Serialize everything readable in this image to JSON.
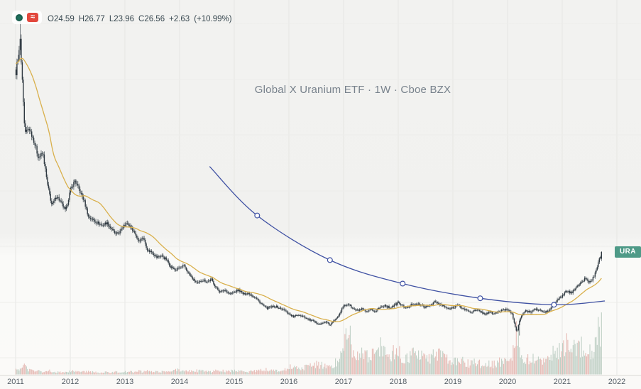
{
  "watermark": {
    "text": "Global X Uranium ETF · 1W · Cboe BZX"
  },
  "legend": {
    "ohlc_parts": [
      "O24.59",
      "H26.77",
      "L23.96",
      "C26.56",
      "+2.63",
      "(+10.99%)"
    ]
  },
  "badges": {
    "symbol_label": "URA"
  },
  "icons": {
    "wave_badge_glyph": "≈"
  },
  "time_axis": {
    "years": [
      "2011",
      "2012",
      "2013",
      "2014",
      "2015",
      "2016",
      "2017",
      "2018",
      "2019",
      "2020",
      "2021",
      "2022"
    ]
  },
  "colors": {
    "candle": "#2e3840",
    "ma": "#d9b04c",
    "curve": "#3f51a3",
    "vol_up": "#b4c8bc",
    "vol_down": "#e2afa9",
    "grid_v": "#e6e6e3",
    "grid_h": "#ededea",
    "accent_badge": "#4e9a87",
    "icon_red": "#e2483d",
    "icon_dot": "#1e6f5c",
    "legend_text": "#37474f",
    "watermark_text": "#78828c"
  },
  "chart_data": {
    "type": "candlestick",
    "title": "Global X Uranium ETF · 1W · Cboe BZX",
    "ticker": "URA",
    "interval": "1W",
    "exchange": "Cboe BZX",
    "last_bar": {
      "open": 24.59,
      "high": 26.77,
      "low": 23.96,
      "close": 26.56,
      "change": 2.63,
      "change_pct": 10.99
    },
    "x_domain": [
      2011.0,
      2022.15
    ],
    "ylim": [
      0,
      150
    ],
    "grid": true,
    "legend_position": "top-left",
    "events": {
      "peak_t": 2011.083,
      "peak_high": 139,
      "low_t": 2020.21,
      "low_low": 7.55
    },
    "pre_t": [
      2010.333,
      2010.417,
      2010.5,
      2010.583,
      2010.667,
      2010.75,
      2010.833,
      2010.917
    ],
    "pre_close": [
      88,
      92,
      97,
      104,
      112,
      120,
      126,
      121
    ],
    "months_t": [
      2011.0,
      2011.083,
      2011.167,
      2011.25,
      2011.333,
      2011.417,
      2011.5,
      2011.583,
      2011.667,
      2011.75,
      2011.833,
      2011.917,
      2012.0,
      2012.083,
      2012.167,
      2012.25,
      2012.333,
      2012.417,
      2012.5,
      2012.583,
      2012.667,
      2012.75,
      2012.833,
      2012.917,
      2013.0,
      2013.083,
      2013.167,
      2013.25,
      2013.333,
      2013.417,
      2013.5,
      2013.583,
      2013.667,
      2013.75,
      2013.833,
      2013.917,
      2014.0,
      2014.083,
      2014.167,
      2014.25,
      2014.333,
      2014.417,
      2014.5,
      2014.583,
      2014.667,
      2014.75,
      2014.833,
      2014.917,
      2015.0,
      2015.083,
      2015.167,
      2015.25,
      2015.333,
      2015.417,
      2015.5,
      2015.583,
      2015.667,
      2015.75,
      2015.833,
      2015.917,
      2016.0,
      2016.083,
      2016.167,
      2016.25,
      2016.333,
      2016.417,
      2016.5,
      2016.583,
      2016.667,
      2016.75,
      2016.833,
      2016.917,
      2017.0,
      2017.083,
      2017.167,
      2017.25,
      2017.333,
      2017.417,
      2017.5,
      2017.583,
      2017.667,
      2017.75,
      2017.833,
      2017.917,
      2018.0,
      2018.083,
      2018.167,
      2018.25,
      2018.333,
      2018.417,
      2018.5,
      2018.583,
      2018.667,
      2018.75,
      2018.833,
      2018.917,
      2019.0,
      2019.083,
      2019.167,
      2019.25,
      2019.333,
      2019.417,
      2019.5,
      2019.583,
      2019.667,
      2019.75,
      2019.833,
      2019.917,
      2020.0,
      2020.083,
      2020.167,
      2020.25,
      2020.333,
      2020.417,
      2020.5,
      2020.583,
      2020.667,
      2020.75,
      2020.833,
      2020.917,
      2021.0,
      2021.083,
      2021.167,
      2021.25,
      2021.333,
      2021.417,
      2021.5,
      2021.583,
      2021.667,
      2021.72
    ],
    "months_close": [
      105,
      126,
      74,
      76,
      70,
      62,
      64,
      50,
      42,
      46,
      43,
      40,
      48,
      52,
      48,
      44,
      38,
      37,
      36,
      35,
      36,
      34,
      32,
      33,
      36,
      35,
      33,
      30,
      31,
      27,
      26.5,
      25,
      25.5,
      24.5,
      22.5,
      21.5,
      22,
      22.5,
      20.5,
      19,
      18,
      19,
      18.5,
      19,
      17,
      16,
      16.5,
      15.5,
      16,
      16.5,
      15.5,
      15.8,
      15.2,
      14.4,
      13.4,
      12.5,
      12.7,
      12.9,
      12.5,
      12.1,
      11.4,
      10.8,
      11.2,
      11,
      10.4,
      10.1,
      9.7,
      9.5,
      9.9,
      9.3,
      10.1,
      11.3,
      12.9,
      13.4,
      12.4,
      12,
      12.3,
      11.7,
      12.1,
      11.9,
      12.7,
      13.1,
      12.6,
      13,
      13.7,
      12.9,
      12.5,
      13.3,
      13.5,
      13.1,
      12.7,
      13.1,
      13.9,
      13.3,
      12.9,
      12.3,
      12.7,
      13.1,
      12.5,
      12.1,
      11.7,
      12.1,
      11.9,
      11.3,
      11.7,
      11.4,
      11.8,
      12.1,
      12.3,
      11.4,
      8,
      11.1,
      11.9,
      11.7,
      12.3,
      12.1,
      11.7,
      11.9,
      13.1,
      14.3,
      15.1,
      16.3,
      15.7,
      17.3,
      17.9,
      19.4,
      18.3,
      19.7,
      23.9,
      26.56
    ],
    "months_volume": [
      5,
      8,
      10,
      5,
      4,
      4,
      3,
      5,
      4,
      3,
      3,
      3,
      4,
      4,
      3,
      3,
      4,
      3,
      2,
      2,
      3,
      2,
      3,
      3,
      3,
      3,
      3,
      4,
      3,
      4,
      3,
      3,
      3,
      3,
      4,
      5,
      5,
      4,
      4,
      5,
      4,
      4,
      3,
      3,
      5,
      5,
      4,
      4,
      4,
      4,
      4,
      3,
      4,
      4,
      5,
      6,
      5,
      4,
      4,
      5,
      8,
      9,
      7,
      8,
      9,
      10,
      12,
      11,
      9,
      10,
      13,
      18,
      42,
      55,
      30,
      24,
      26,
      22,
      24,
      20,
      32,
      30,
      24,
      28,
      26,
      22,
      20,
      24,
      28,
      22,
      18,
      20,
      30,
      24,
      20,
      18,
      16,
      14,
      15,
      13,
      12,
      14,
      12,
      11,
      13,
      12,
      14,
      15,
      16,
      18,
      48,
      26,
      20,
      16,
      18,
      15,
      14,
      16,
      24,
      30,
      30,
      36,
      28,
      34,
      30,
      38,
      26,
      32,
      58,
      52
    ],
    "ma": {
      "period": 30
    },
    "curve_drawing": {
      "points": [
        [
          2014.55,
          58
        ],
        [
          2015.42,
          38.5
        ],
        [
          2016.75,
          24.2
        ],
        [
          2018.08,
          18
        ],
        [
          2019.5,
          14.6
        ],
        [
          2020.85,
          13.2
        ],
        [
          2021.78,
          14
        ]
      ],
      "marker_indices": [
        1,
        2,
        3,
        4,
        5
      ]
    }
  }
}
